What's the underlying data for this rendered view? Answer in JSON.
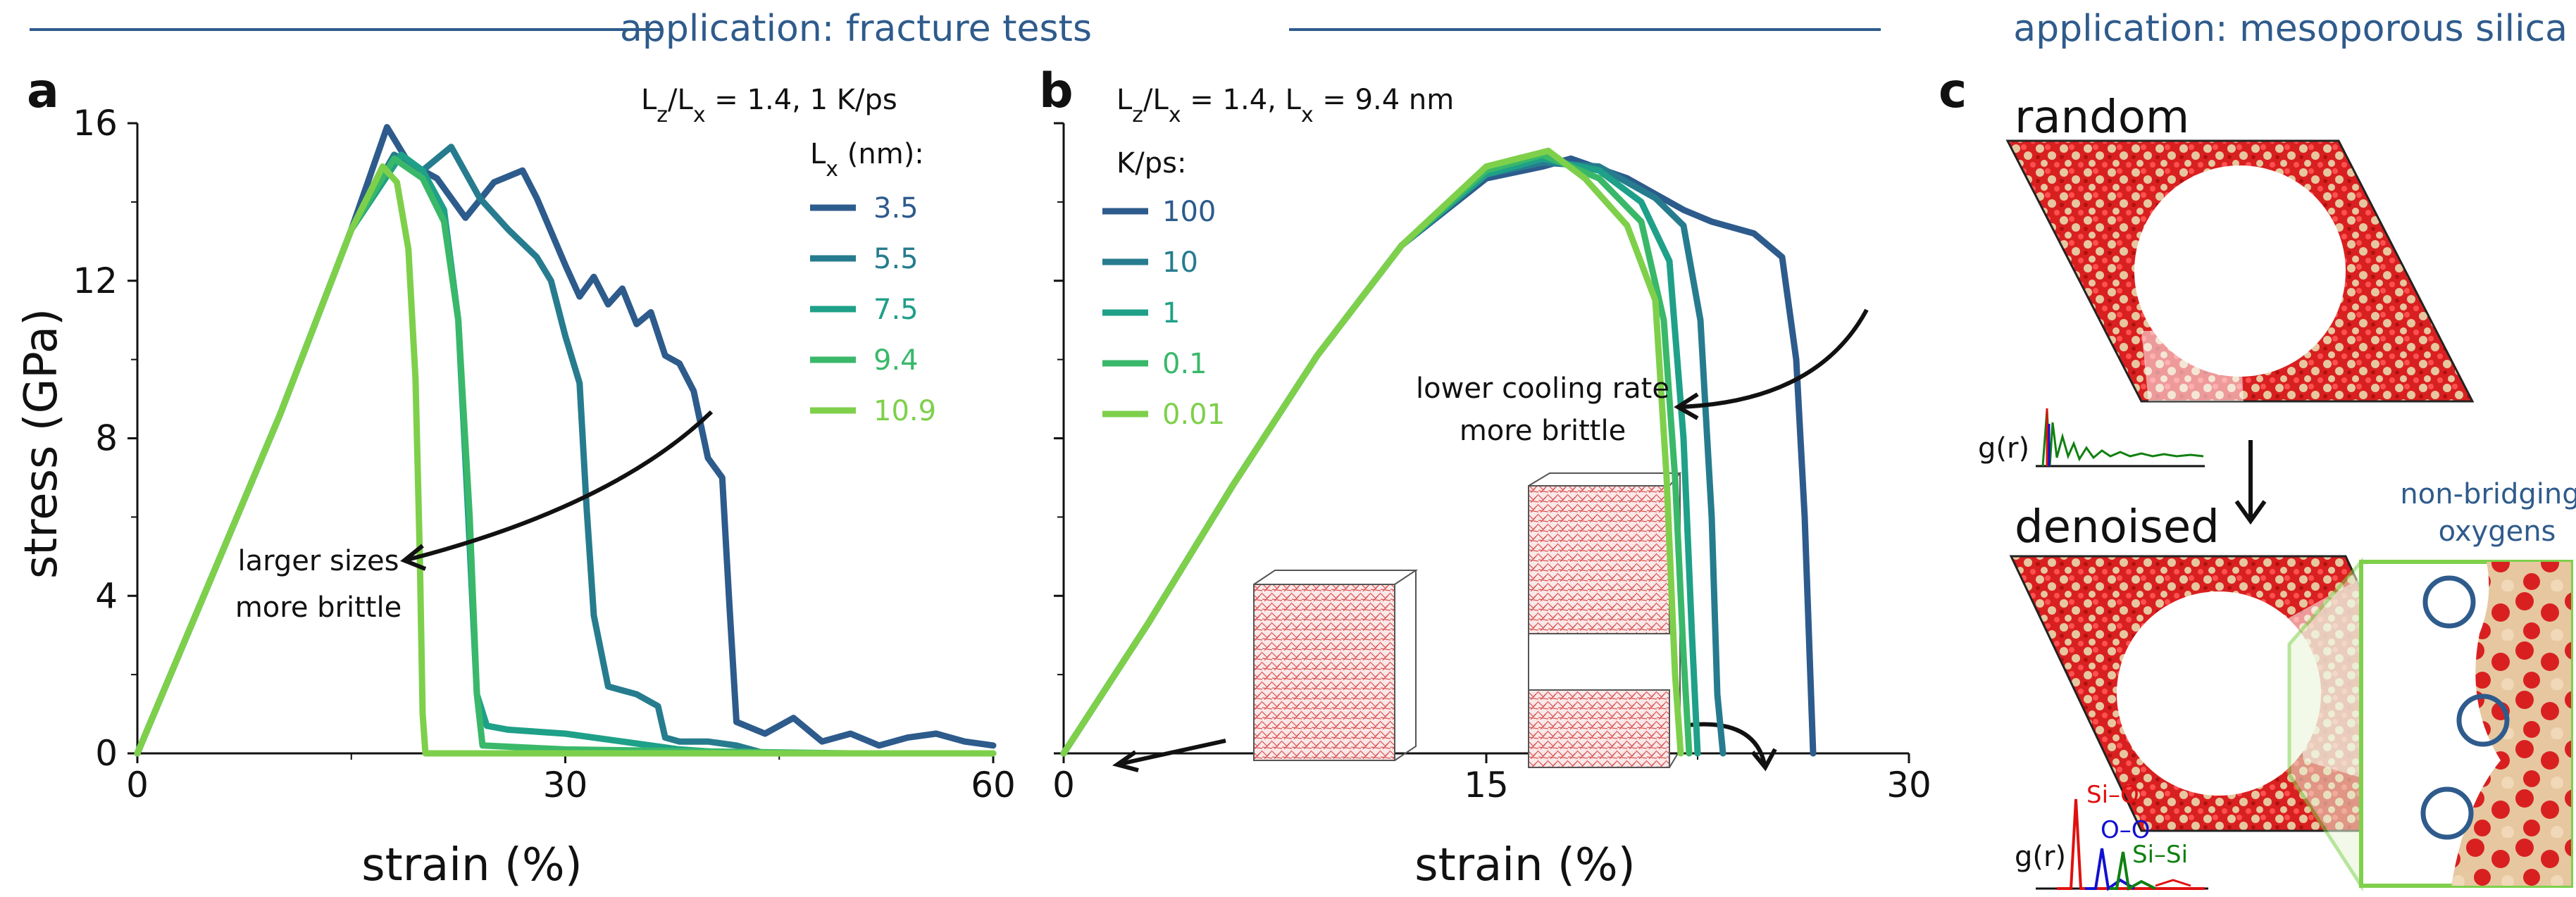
{
  "header": {
    "left_title": "application: fracture tests",
    "right_title": "application: mesoporous silica"
  },
  "colors": {
    "accent": "#2f5b8c",
    "series": [
      "#2d5b8c",
      "#267c8e",
      "#1fa088",
      "#3ab86a",
      "#7ed04b"
    ],
    "silica_red": "#d92020",
    "silica_tan": "#e6c7a0",
    "rdf_red": "#e01010",
    "rdf_blue": "#1010d0",
    "rdf_green": "#108010"
  },
  "chart_data": [
    {
      "panel": "a",
      "type": "line",
      "condition": "L_z/L_x = 1.4,  1 K/ps",
      "xlabel": "strain (%)",
      "ylabel": "stress (GPa)",
      "xlim": [
        0,
        60
      ],
      "ylim": [
        0,
        16
      ],
      "xticks": [
        0,
        30,
        60
      ],
      "yticks": [
        0,
        4,
        8,
        12,
        16
      ],
      "legend_title": "L_x (nm):",
      "legend_position": "top-right",
      "annotation": [
        "larger sizes",
        "more brittle"
      ],
      "series": [
        {
          "name": "3.5",
          "x": [
            0,
            5,
            10,
            15,
            17.5,
            19,
            21,
            23,
            25,
            27,
            28,
            30,
            31,
            32,
            33,
            34,
            35,
            36,
            37,
            38,
            39,
            40,
            41,
            41.5,
            42,
            44,
            46,
            48,
            50,
            52,
            54,
            56,
            58,
            60
          ],
          "y": [
            0,
            4.3,
            8.6,
            13.3,
            15.9,
            15.0,
            14.6,
            13.6,
            14.5,
            14.8,
            14.1,
            12.4,
            11.6,
            12.1,
            11.4,
            11.8,
            10.9,
            11.2,
            10.1,
            9.9,
            9.2,
            7.5,
            7.0,
            3.8,
            0.8,
            0.5,
            0.9,
            0.3,
            0.5,
            0.2,
            0.4,
            0.5,
            0.3,
            0.2
          ]
        },
        {
          "name": "5.5",
          "x": [
            0,
            5,
            10,
            15,
            18,
            20,
            22,
            24,
            26,
            28,
            29,
            30,
            31,
            31.5,
            32,
            33,
            35,
            36.5,
            37,
            38,
            40,
            42,
            44
          ],
          "y": [
            0,
            4.3,
            8.6,
            13.3,
            15.2,
            14.8,
            15.4,
            14.1,
            13.3,
            12.6,
            12.0,
            10.6,
            9.4,
            6.2,
            3.5,
            1.7,
            1.5,
            1.2,
            0.4,
            0.3,
            0.3,
            0.2,
            0
          ]
        },
        {
          "name": "7.5",
          "x": [
            0,
            5,
            10,
            15,
            18.5,
            20,
            21.5,
            22.5,
            23.2,
            23.8,
            24.5,
            26,
            30,
            34,
            38,
            42
          ],
          "y": [
            0,
            4.3,
            8.6,
            13.3,
            15.2,
            14.8,
            13.8,
            11.0,
            6.0,
            1.5,
            0.7,
            0.6,
            0.5,
            0.3,
            0.1,
            0
          ]
        },
        {
          "name": "9.4",
          "x": [
            0,
            5,
            10,
            15,
            18,
            20,
            21.5,
            22.5,
            23.3,
            23.8,
            24.2,
            30,
            40,
            50,
            60
          ],
          "y": [
            0,
            4.3,
            8.6,
            13.3,
            15.1,
            14.6,
            13.5,
            11.0,
            6.0,
            1.5,
            0.2,
            0.1,
            0.05,
            0,
            0
          ]
        },
        {
          "name": "10.9",
          "x": [
            0,
            5,
            10,
            15,
            17.2,
            18.2,
            19.0,
            19.5,
            19.8,
            20.0,
            20.2,
            30,
            40,
            50,
            60
          ],
          "y": [
            0,
            4.3,
            8.6,
            13.3,
            14.9,
            14.5,
            12.8,
            9.5,
            5.0,
            1.0,
            0,
            0,
            0,
            0,
            0
          ]
        }
      ]
    },
    {
      "panel": "b",
      "type": "line",
      "condition": "L_z/L_x = 1.4,  L_x = 9.4 nm",
      "xlabel": "strain (%)",
      "ylabel": "",
      "xlim": [
        0,
        30
      ],
      "ylim": [
        0,
        16
      ],
      "xticks": [
        0,
        15,
        30
      ],
      "yticks": [
        0,
        4,
        8,
        12,
        16
      ],
      "legend_title": "K/ps:",
      "legend_position": "top-left",
      "annotation": [
        "lower cooling rate",
        "more brittle"
      ],
      "series": [
        {
          "name": "100",
          "x": [
            0,
            3,
            6,
            9,
            12,
            15,
            17,
            18,
            20,
            22,
            23,
            24.5,
            25.5,
            26.0,
            26.3,
            26.5,
            26.6
          ],
          "y": [
            0,
            3.3,
            6.8,
            10.1,
            12.9,
            14.6,
            14.9,
            15.1,
            14.6,
            13.8,
            13.5,
            13.2,
            12.6,
            10.0,
            6.0,
            2.0,
            0
          ]
        },
        {
          "name": "10",
          "x": [
            0,
            3,
            6,
            9,
            12,
            15,
            17,
            19,
            21,
            22,
            22.6,
            23.0,
            23.2,
            23.4
          ],
          "y": [
            0,
            3.3,
            6.8,
            10.1,
            12.9,
            14.7,
            15.0,
            14.9,
            14.1,
            13.4,
            11.0,
            6.0,
            1.5,
            0
          ]
        },
        {
          "name": "1",
          "x": [
            0,
            3,
            6,
            9,
            12,
            15,
            17,
            19,
            20.5,
            21.5,
            22.0,
            22.3,
            22.5
          ],
          "y": [
            0,
            3.3,
            6.8,
            10.1,
            12.9,
            14.7,
            15.1,
            14.8,
            14.0,
            12.5,
            8.0,
            3.0,
            0
          ]
        },
        {
          "name": "0.1",
          "x": [
            0,
            3,
            6,
            9,
            12,
            15,
            17,
            19,
            20.5,
            21.3,
            21.7,
            22.0,
            22.2
          ],
          "y": [
            0,
            3.3,
            6.8,
            10.1,
            12.9,
            14.8,
            15.2,
            14.6,
            13.5,
            11.0,
            7.0,
            2.5,
            0
          ]
        },
        {
          "name": "0.01",
          "x": [
            0,
            3,
            6,
            9,
            12,
            15,
            17.2,
            18.5,
            20,
            21.0,
            21.4,
            21.7,
            21.9
          ],
          "y": [
            0,
            3.3,
            6.8,
            10.1,
            12.9,
            14.9,
            15.3,
            14.6,
            13.4,
            11.5,
            7.0,
            2.0,
            0
          ]
        }
      ]
    }
  ],
  "panel_c": {
    "label": "c",
    "random_label": "random",
    "denoised_label": "denoised",
    "nbo_label": [
      "non-bridging",
      "oxygens"
    ],
    "gr_label": "g(r)",
    "rdf_peaks": [
      "Si–O",
      "O–O",
      "Si–Si"
    ]
  }
}
